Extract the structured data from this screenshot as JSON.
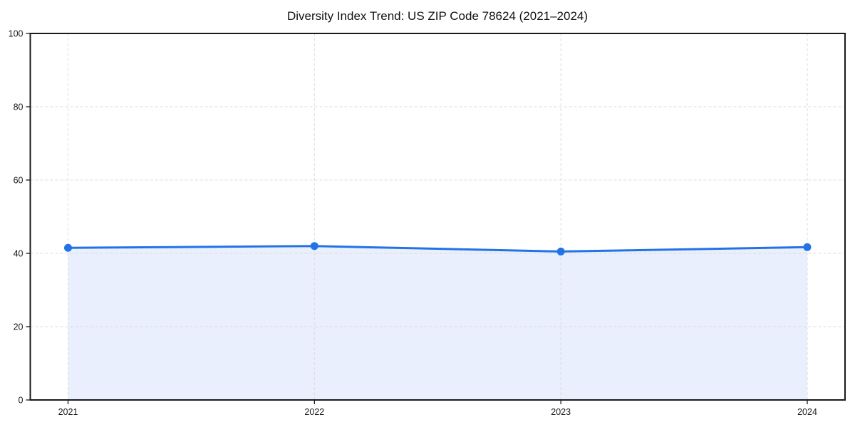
{
  "chart_data": {
    "type": "area",
    "title": "Diversity Index Trend: US ZIP Code 78624 (2021–2024)",
    "xlabel": "",
    "ylabel": "",
    "categories": [
      "2021",
      "2022",
      "2023",
      "2024"
    ],
    "series": [
      {
        "name": "Diversity Index",
        "values": [
          41.5,
          42.0,
          40.5,
          41.7
        ]
      }
    ],
    "ylim": [
      0,
      100
    ],
    "yticks": [
      0,
      20,
      40,
      60,
      80,
      100
    ],
    "grid": "dashed-both-axes",
    "legend": "none",
    "marker": "circle",
    "colors": {
      "line": "#2273e6",
      "marker": "#2273e6",
      "area_fill": "#e9effc",
      "gridline": "#dcdcdc",
      "spine": "#1a1a1a",
      "tick_text": "#1a1a1a",
      "background": "#ffffff"
    }
  }
}
